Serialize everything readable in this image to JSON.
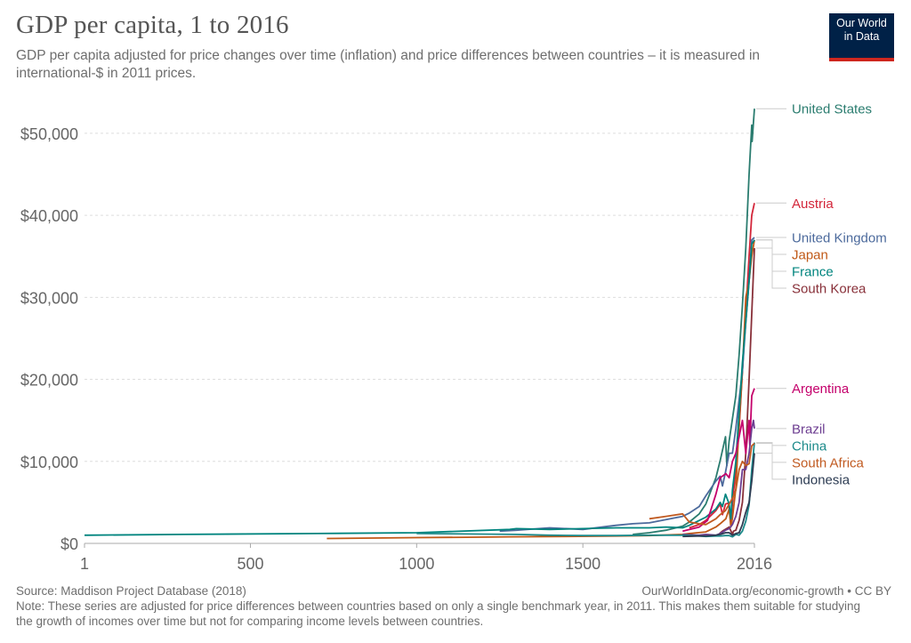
{
  "header": {
    "title": "GDP per capita, 1 to 2016",
    "subtitle": "GDP per capita adjusted for price changes over time (inflation) and price differences between countries – it is measured in international-$ in 2011 prices.",
    "logo_line1": "Our World",
    "logo_line2": "in Data"
  },
  "footer": {
    "source": "Source: Maddison Project Database (2018)",
    "site": "OurWorldInData.org/economic-growth • CC BY",
    "note": "Note: These series are adjusted for price differences between countries based on only a single benchmark year, in 2011. This makes them suitable for studying the growth of incomes over time but not for comparing income levels between countries."
  },
  "chart_data": {
    "type": "line",
    "title": "GDP per capita, 1 to 2016",
    "xlabel": "",
    "ylabel": "",
    "xlim": [
      1,
      2016
    ],
    "ylim": [
      0,
      54000
    ],
    "x_ticks": [
      1,
      500,
      1000,
      1500,
      2016
    ],
    "x_tick_labels": [
      "1",
      "500",
      "1000",
      "1500",
      "2016"
    ],
    "y_ticks": [
      0,
      10000,
      20000,
      30000,
      40000,
      50000
    ],
    "y_tick_labels": [
      "$0",
      "$10,000",
      "$20,000",
      "$30,000",
      "$40,000",
      "$50,000"
    ],
    "grid": "horizontal dashed",
    "legend": "right, end-of-line labels",
    "series": [
      {
        "name": "United States",
        "color": "#2a7c6f",
        "x": [
          1650,
          1700,
          1750,
          1800,
          1820,
          1850,
          1870,
          1900,
          1913,
          1929,
          1933,
          1940,
          1950,
          1960,
          1970,
          1980,
          1990,
          2000,
          2008,
          2009,
          2016
        ],
        "y": [
          1100,
          1300,
          1600,
          2100,
          2600,
          3600,
          4800,
          8000,
          10100,
          13000,
          9500,
          12500,
          15200,
          18000,
          23000,
          29000,
          36000,
          45000,
          51000,
          49000,
          53000
        ]
      },
      {
        "name": "Austria",
        "color": "#d3263a",
        "x": [
          1820,
          1850,
          1870,
          1900,
          1913,
          1920,
          1929,
          1938,
          1945,
          1950,
          1960,
          1970,
          1980,
          1990,
          2000,
          2008,
          2016
        ],
        "y": [
          1900,
          2300,
          2800,
          4000,
          4800,
          3500,
          4800,
          4900,
          2500,
          4900,
          9000,
          14000,
          21000,
          28000,
          35000,
          40000,
          41500
        ]
      },
      {
        "name": "Japan",
        "color": "#c05917",
        "x": [
          730,
          1000,
          1150,
          1280,
          1450,
          1600,
          1700,
          1800,
          1820,
          1870,
          1900,
          1913,
          1930,
          1940,
          1945,
          1950,
          1960,
          1970,
          1980,
          1990,
          2000,
          2008,
          2016
        ],
        "y": [
          600,
          700,
          750,
          800,
          850,
          900,
          950,
          1100,
          1200,
          1400,
          2000,
          2400,
          3000,
          4200,
          2000,
          3100,
          6700,
          14500,
          21000,
          30000,
          32000,
          35000,
          37000
        ]
      },
      {
        "name": "United Kingdom",
        "color": "#4c6a9c",
        "x": [
          1250,
          1300,
          1400,
          1500,
          1600,
          1650,
          1700,
          1750,
          1800,
          1820,
          1850,
          1870,
          1900,
          1913,
          1920,
          1929,
          1940,
          1950,
          1960,
          1970,
          1980,
          1990,
          2000,
          2008,
          2016
        ],
        "y": [
          1500,
          1600,
          1900,
          1700,
          2200,
          2400,
          2500,
          2900,
          3300,
          3700,
          4500,
          5800,
          7600,
          8200,
          7000,
          8700,
          11000,
          11000,
          14000,
          17500,
          21000,
          27000,
          32000,
          37000,
          37300
        ]
      },
      {
        "name": "France",
        "color": "#00847e",
        "x": [
          1,
          300,
          700,
          1000,
          1280,
          1300,
          1400,
          1500,
          1600,
          1650,
          1700,
          1750,
          1800,
          1820,
          1850,
          1870,
          1900,
          1913,
          1920,
          1929,
          1940,
          1945,
          1950,
          1960,
          1970,
          1980,
          1990,
          2000,
          2008,
          2016
        ],
        "y": [
          1000,
          1100,
          1200,
          1300,
          1700,
          1800,
          1700,
          1800,
          1900,
          1900,
          1900,
          2000,
          1900,
          2200,
          2800,
          3200,
          4200,
          5000,
          4500,
          6000,
          4800,
          3000,
          6500,
          10000,
          16000,
          22000,
          27000,
          32000,
          36500,
          37000
        ]
      },
      {
        "name": "South Korea",
        "color": "#883039",
        "x": [
          1911,
          1920,
          1940,
          1950,
          1953,
          1960,
          1970,
          1980,
          1990,
          2000,
          2008,
          2016
        ],
        "y": [
          1200,
          1500,
          2000,
          1100,
          1500,
          1600,
          2800,
          5000,
          11000,
          20000,
          28000,
          36000
        ]
      },
      {
        "name": "Argentina",
        "color": "#c4006b",
        "x": [
          1800,
          1850,
          1875,
          1900,
          1913,
          1930,
          1940,
          1950,
          1960,
          1970,
          1980,
          1990,
          2000,
          2002,
          2008,
          2016
        ],
        "y": [
          1500,
          2000,
          2800,
          6000,
          8000,
          8500,
          8000,
          10000,
          11000,
          13000,
          15000,
          11000,
          15000,
          12000,
          18000,
          18900
        ]
      },
      {
        "name": "Brazil",
        "color": "#6d3e91",
        "x": [
          1800,
          1850,
          1870,
          1900,
          1913,
          1929,
          1940,
          1950,
          1960,
          1970,
          1980,
          1990,
          2000,
          2008,
          2013,
          2016
        ],
        "y": [
          1100,
          1000,
          1100,
          1000,
          1200,
          1600,
          1800,
          2300,
          3300,
          5000,
          9000,
          9000,
          11000,
          14000,
          15000,
          14000
        ]
      },
      {
        "name": "China",
        "color": "#1c8a8a",
        "x": [
          1000,
          1300,
          1400,
          1500,
          1600,
          1700,
          1800,
          1850,
          1870,
          1900,
          1913,
          1929,
          1940,
          1950,
          1960,
          1970,
          1980,
          1990,
          2000,
          2008,
          2016
        ],
        "y": [
          1200,
          1100,
          1000,
          950,
          950,
          1000,
          1000,
          900,
          850,
          900,
          900,
          950,
          950,
          800,
          1100,
          1000,
          1500,
          2700,
          4700,
          9000,
          12300
        ]
      },
      {
        "name": "South Africa",
        "color": "#c15b22",
        "x": [
          1700,
          1750,
          1800,
          1820,
          1850,
          1870,
          1900,
          1913,
          1929,
          1950,
          1960,
          1970,
          1980,
          1990,
          2000,
          2008,
          2016
        ],
        "y": [
          3000,
          3300,
          3600,
          2600,
          2400,
          2300,
          3000,
          3500,
          4000,
          5500,
          6500,
          9000,
          10000,
          9500,
          9700,
          11900,
          12200
        ]
      },
      {
        "name": "Indonesia",
        "color": "#2d3c53",
        "x": [
          1800,
          1850,
          1870,
          1900,
          1913,
          1929,
          1940,
          1950,
          1960,
          1970,
          1980,
          1990,
          2000,
          2008,
          2016
        ],
        "y": [
          850,
          900,
          900,
          1000,
          1100,
          1300,
          1300,
          1000,
          1200,
          1300,
          2300,
          3800,
          5000,
          7600,
          11000
        ]
      }
    ]
  }
}
